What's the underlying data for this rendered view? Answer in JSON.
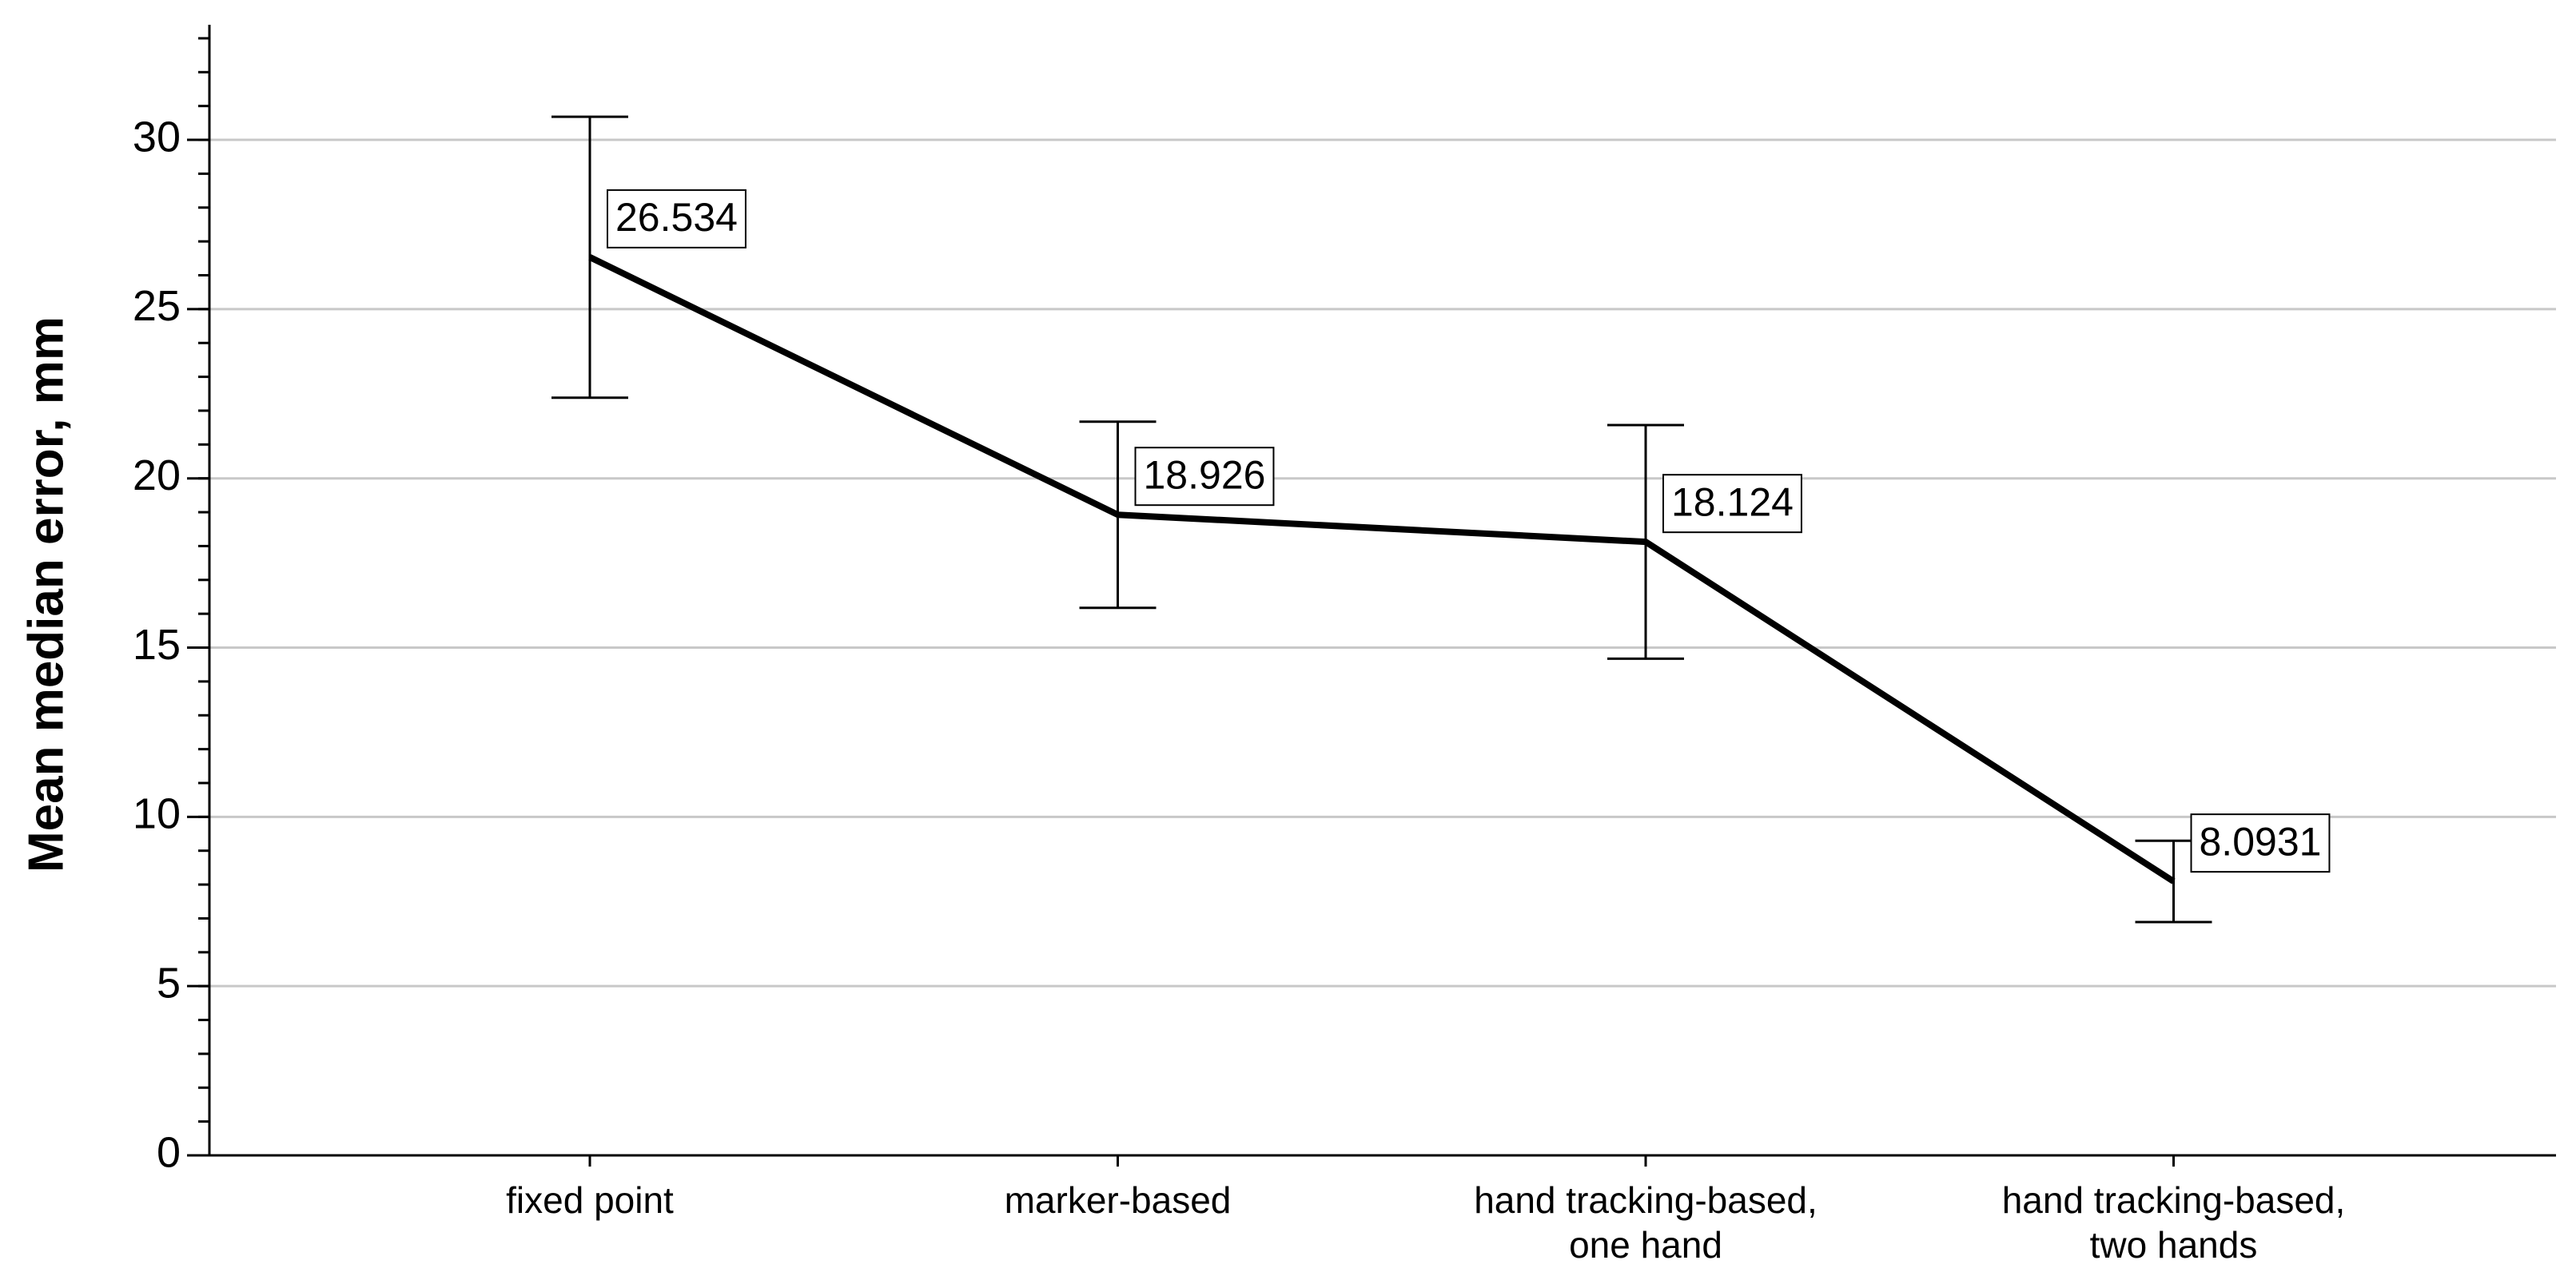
{
  "chart_data": {
    "type": "line",
    "y_label": "Mean median error, mm",
    "categories": [
      [
        "fixed point"
      ],
      [
        "marker-based"
      ],
      [
        "hand tracking-based,",
        "one hand"
      ],
      [
        "hand tracking-based,",
        "two hands"
      ]
    ],
    "values": [
      26.534,
      18.926,
      18.124,
      8.0931
    ],
    "value_labels": [
      "26.534",
      "18.926",
      "18.124",
      "8.0931"
    ],
    "errors": [
      4.15,
      2.75,
      3.45,
      1.2
    ],
    "color": "#000000",
    "ylim": [
      0,
      33.4
    ],
    "yticks": [
      0,
      5,
      10,
      15,
      20,
      25,
      30
    ],
    "y_minor_ticks": [
      0,
      1,
      2,
      3,
      4,
      5,
      6,
      7,
      8,
      9,
      10,
      11,
      12,
      13,
      14,
      15,
      16,
      17,
      18,
      19,
      20,
      21,
      22,
      23,
      24,
      25,
      26,
      27,
      28,
      29,
      30,
      31,
      32,
      33
    ],
    "grid": true
  }
}
